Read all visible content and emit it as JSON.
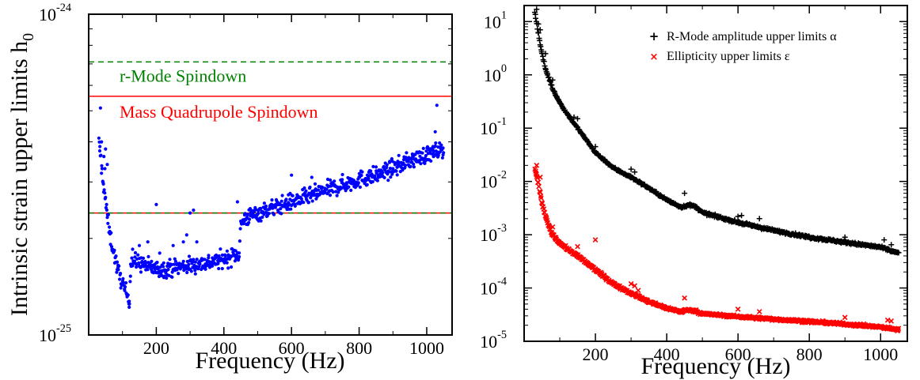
{
  "chart_data": [
    {
      "type": "scatter",
      "title": "",
      "xlabel": "Frequency (Hz)",
      "ylabel": "Intrinsic strain upper limits h",
      "ylabel_subscript": "0",
      "xlim": [
        0,
        1075
      ],
      "ylim": [
        1e-25,
        1e-24
      ],
      "yscale": "log",
      "grid": false,
      "x_ticks": [
        200,
        400,
        600,
        800,
        1000
      ],
      "y_ticks": [
        {
          "value": 1e-25,
          "base": "10",
          "exp": "-25"
        },
        {
          "value": 1e-24,
          "base": "10",
          "exp": "-24"
        }
      ],
      "lines": [
        {
          "label": "r-Mode Spindown",
          "y": 7.1e-25,
          "color": "#008000",
          "dash": true
        },
        {
          "label": "Mass Quadrupole Spindown",
          "y": 5.55e-25,
          "color": "#ff0000",
          "dash": false
        },
        {
          "label": "",
          "y": 2.4e-25,
          "color": "#ff0000",
          "dash": false
        },
        {
          "label": "",
          "y": 2.4e-25,
          "color": "#008000",
          "dash": true
        }
      ],
      "series": [
        {
          "name": "",
          "color": "#0000ff",
          "marker": "dot",
          "curve": [
            [
              30,
              4e-25
            ],
            [
              35,
              3.6e-25
            ],
            [
              40,
              3.2e-25
            ],
            [
              45,
              2.9e-25
            ],
            [
              50,
              2.6e-25
            ],
            [
              55,
              2.35e-25
            ],
            [
              60,
              2.15e-25
            ],
            [
              65,
              2e-25
            ],
            [
              70,
              1.9e-25
            ],
            [
              75,
              1.8e-25
            ],
            [
              80,
              1.7e-25
            ],
            [
              85,
              1.6e-25
            ],
            [
              90,
              1.55e-25
            ],
            [
              95,
              1.5e-25
            ],
            [
              100,
              1.45e-25
            ],
            [
              105,
              1.4e-25
            ],
            [
              110,
              1.36e-25
            ],
            [
              115,
              1.33e-25
            ],
            [
              120,
              1.3e-25
            ],
            [
              125,
              1.7e-25
            ],
            [
              150,
              1.68e-25
            ],
            [
              180,
              1.63e-25
            ],
            [
              200,
              1.6e-25
            ],
            [
              250,
              1.62e-25
            ],
            [
              300,
              1.65e-25
            ],
            [
              350,
              1.68e-25
            ],
            [
              400,
              1.72e-25
            ],
            [
              445,
              1.8e-25
            ],
            [
              450,
              2.2e-25
            ],
            [
              460,
              2.3e-25
            ],
            [
              480,
              2.35e-25
            ],
            [
              500,
              2.4e-25
            ],
            [
              550,
              2.5e-25
            ],
            [
              600,
              2.6e-25
            ],
            [
              650,
              2.7e-25
            ],
            [
              700,
              2.82e-25
            ],
            [
              750,
              2.93e-25
            ],
            [
              800,
              3.05e-25
            ],
            [
              850,
              3.15e-25
            ],
            [
              900,
              3.3e-25
            ],
            [
              950,
              3.5e-25
            ],
            [
              1000,
              3.65e-25
            ],
            [
              1050,
              3.8e-25
            ]
          ],
          "spread": 0.045,
          "n_points": 820,
          "outliers": [
            [
              35,
              5.1e-25
            ],
            [
              38,
              4e-25
            ],
            [
              45,
              3.6e-25
            ],
            [
              48,
              3.3e-25
            ],
            [
              50,
              3.8e-25
            ],
            [
              42,
              3e-25
            ],
            [
              55,
              3.4e-25
            ],
            [
              120,
              1.22e-25
            ],
            [
              130,
              1.85e-25
            ],
            [
              150,
              1.9e-25
            ],
            [
              175,
              1.95e-25
            ],
            [
              200,
              2.55e-25
            ],
            [
              210,
              1.8e-25
            ],
            [
              250,
              1.9e-25
            ],
            [
              280,
              1.95e-25
            ],
            [
              290,
              2.05e-25
            ],
            [
              300,
              2.4e-25
            ],
            [
              310,
              2.45e-25
            ],
            [
              320,
              1.95e-25
            ],
            [
              440,
              2.6e-25
            ],
            [
              480,
              2.45e-25
            ],
            [
              540,
              2.55e-25
            ],
            [
              560,
              2.45e-25
            ],
            [
              600,
              3.15e-25
            ],
            [
              660,
              3.1e-25
            ],
            [
              750,
              3.05e-25
            ],
            [
              850,
              3.05e-25
            ],
            [
              890,
              3.45e-25
            ],
            [
              900,
              3.3e-25
            ],
            [
              960,
              3.6e-25
            ],
            [
              1010,
              3.75e-25
            ],
            [
              1020,
              3.6e-25
            ],
            [
              1025,
              4.3e-25
            ],
            [
              1030,
              5.2e-25
            ],
            [
              1040,
              3.85e-25
            ]
          ]
        }
      ]
    },
    {
      "type": "scatter",
      "title": "",
      "xlabel": "Frequency (Hz)",
      "ylabel": "",
      "xlim": [
        0,
        1075
      ],
      "ylim": [
        1e-05,
        20
      ],
      "yscale": "log",
      "grid": false,
      "legend_position": "top-right",
      "x_ticks": [
        200,
        400,
        600,
        800,
        1000
      ],
      "y_ticks": [
        {
          "value": 1e-05,
          "base": "10",
          "exp": "-5"
        },
        {
          "value": 0.0001,
          "base": "10",
          "exp": "-4"
        },
        {
          "value": 0.001,
          "base": "10",
          "exp": "-3"
        },
        {
          "value": 0.01,
          "base": "10",
          "exp": "-2"
        },
        {
          "value": 0.1,
          "base": "10",
          "exp": "-1"
        },
        {
          "value": 1,
          "base": "10",
          "exp": "0"
        },
        {
          "value": 10,
          "base": "10",
          "exp": "1"
        }
      ],
      "series": [
        {
          "name": "R-Mode amplitude upper limits α",
          "color": "#000000",
          "marker": "plus",
          "curve": [
            [
              30,
              15
            ],
            [
              40,
              6
            ],
            [
              50,
              2.5
            ],
            [
              60,
              1.3
            ],
            [
              70,
              0.85
            ],
            [
              80,
              0.55
            ],
            [
              100,
              0.3
            ],
            [
              120,
              0.19
            ],
            [
              150,
              0.1
            ],
            [
              200,
              0.035
            ],
            [
              250,
              0.018
            ],
            [
              300,
              0.012
            ],
            [
              350,
              0.0075
            ],
            [
              400,
              0.0045
            ],
            [
              440,
              0.0033
            ],
            [
              460,
              0.0036
            ],
            [
              480,
              0.0034
            ],
            [
              500,
              0.0026
            ],
            [
              600,
              0.0017
            ],
            [
              700,
              0.0012
            ],
            [
              800,
              0.0009
            ],
            [
              900,
              0.00072
            ],
            [
              1000,
              0.00058
            ],
            [
              1050,
              0.00045
            ]
          ],
          "spread": 0.04,
          "n_points": 700,
          "outliers": [
            [
              35,
              17
            ],
            [
              40,
              9
            ],
            [
              45,
              7
            ],
            [
              60,
              2.5
            ],
            [
              80,
              0.8
            ],
            [
              140,
              0.16
            ],
            [
              150,
              0.15
            ],
            [
              200,
              0.045
            ],
            [
              300,
              0.017
            ],
            [
              310,
              0.015
            ],
            [
              450,
              0.006
            ],
            [
              600,
              0.0022
            ],
            [
              610,
              0.0023
            ],
            [
              660,
              0.002
            ],
            [
              900,
              0.0009
            ],
            [
              1010,
              0.0008
            ],
            [
              1030,
              0.00065
            ]
          ]
        },
        {
          "name": "Ellipticity upper limits ε",
          "color": "#ff0000",
          "marker": "cross",
          "curve": [
            [
              30,
              0.018
            ],
            [
              40,
              0.009
            ],
            [
              50,
              0.004
            ],
            [
              60,
              0.0022
            ],
            [
              70,
              0.0014
            ],
            [
              80,
              0.001
            ],
            [
              100,
              0.0007
            ],
            [
              120,
              0.00055
            ],
            [
              150,
              0.0004
            ],
            [
              200,
              0.00022
            ],
            [
              250,
              0.00012
            ],
            [
              300,
              8e-05
            ],
            [
              350,
              5.5e-05
            ],
            [
              400,
              4.2e-05
            ],
            [
              440,
              3.6e-05
            ],
            [
              460,
              3.9e-05
            ],
            [
              480,
              3.7e-05
            ],
            [
              500,
              3.3e-05
            ],
            [
              600,
              2.9e-05
            ],
            [
              700,
              2.6e-05
            ],
            [
              800,
              2.35e-05
            ],
            [
              900,
              2.1e-05
            ],
            [
              1000,
              1.85e-05
            ],
            [
              1050,
              1.65e-05
            ]
          ],
          "spread": 0.04,
          "n_points": 700,
          "outliers": [
            [
              35,
              0.02
            ],
            [
              45,
              0.012
            ],
            [
              80,
              0.0014
            ],
            [
              150,
              0.0006
            ],
            [
              200,
              0.0008
            ],
            [
              300,
              0.00012
            ],
            [
              310,
              0.00011
            ],
            [
              320,
              9e-05
            ],
            [
              450,
              6.5e-05
            ],
            [
              600,
              4e-05
            ],
            [
              660,
              3.6e-05
            ],
            [
              900,
              2.8e-05
            ],
            [
              1020,
              2.5e-05
            ],
            [
              1030,
              2.4e-05
            ]
          ]
        }
      ]
    }
  ]
}
